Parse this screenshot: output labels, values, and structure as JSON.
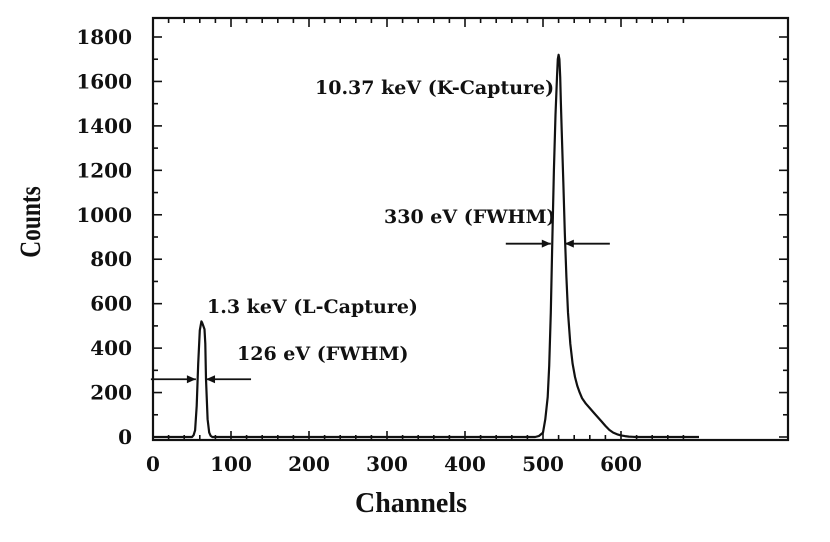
{
  "chart_data": {
    "type": "line",
    "title": "",
    "xlabel": "Channels",
    "ylabel": "Counts",
    "xlim": [
      0,
      700
    ],
    "ylim": [
      0,
      1850
    ],
    "x_ticks": [
      0,
      100,
      200,
      300,
      400,
      500,
      600
    ],
    "y_ticks": [
      0,
      200,
      400,
      600,
      800,
      1000,
      1200,
      1400,
      1600,
      1800
    ],
    "grid": false,
    "series": [
      {
        "x": [
          0,
          50,
          52,
          54,
          56,
          58,
          60,
          62,
          63,
          64,
          65,
          66,
          67,
          68,
          70,
          72,
          74,
          76,
          80,
          100,
          200,
          300,
          400,
          490,
          495,
          500,
          503,
          506,
          508,
          510,
          512,
          514,
          516,
          518,
          519,
          520,
          521,
          522,
          523,
          524,
          526,
          528,
          530,
          532,
          535,
          538,
          541,
          544,
          547,
          550,
          555,
          560,
          565,
          570,
          575,
          580,
          585,
          590,
          595,
          600,
          605,
          610,
          615,
          620,
          700
        ],
        "y": [
          0,
          0,
          8,
          30,
          140,
          330,
          480,
          520,
          515,
          505,
          495,
          485,
          420,
          260,
          80,
          20,
          5,
          0,
          0,
          0,
          0,
          0,
          0,
          0,
          5,
          20,
          80,
          180,
          320,
          560,
          900,
          1200,
          1450,
          1620,
          1700,
          1720,
          1700,
          1620,
          1500,
          1380,
          1150,
          920,
          720,
          560,
          420,
          330,
          270,
          230,
          200,
          175,
          150,
          130,
          110,
          90,
          70,
          50,
          32,
          20,
          12,
          7,
          4,
          2,
          1,
          0,
          0
        ]
      }
    ],
    "annotations": [
      {
        "id": "k-peak",
        "text": "10.37 keV (K-Capture)"
      },
      {
        "id": "k-fwhm",
        "text": "330 eV (FWHM)"
      },
      {
        "id": "l-peak",
        "text": "1.3 keV (L-Capture)"
      },
      {
        "id": "l-fwhm",
        "text": "126 eV (FWHM)"
      }
    ],
    "fwhm_markers": [
      {
        "left": 510,
        "right": 528,
        "y": 870
      },
      {
        "left": 55,
        "right": 68,
        "y": 260
      }
    ]
  }
}
